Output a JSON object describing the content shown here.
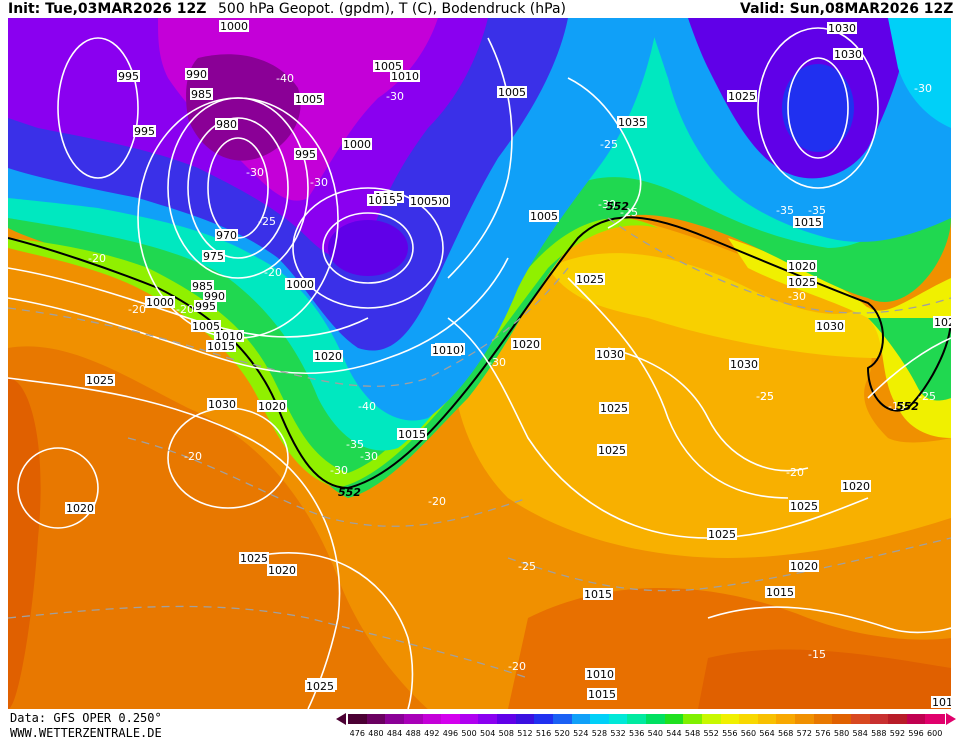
{
  "header": {
    "init": "Init: Tue,03MAR2026 12Z",
    "title": "500 hPa Geopot. (gpdm), T (C), Bodendruck (hPa)",
    "valid": "Valid: Sun,08MAR2026 12Z"
  },
  "footer": {
    "data_source": "Data: GFS OPER 0.250°",
    "website": "WWW.WETTERZENTRALE.DE"
  },
  "legend": {
    "values": [
      "476",
      "480",
      "484",
      "488",
      "492",
      "496",
      "500",
      "504",
      "508",
      "512",
      "516",
      "520",
      "524",
      "528",
      "532",
      "536",
      "540",
      "544",
      "548",
      "552",
      "556",
      "560",
      "564",
      "568",
      "572",
      "576",
      "580",
      "584",
      "588",
      "592",
      "596",
      "600"
    ],
    "colors": [
      "#4b0033",
      "#6a0060",
      "#8a0096",
      "#a800b8",
      "#c400d8",
      "#d400ee",
      "#b000f0",
      "#8a00f0",
      "#6000e8",
      "#3a10e0",
      "#2030f0",
      "#1a60f4",
      "#10a0f8",
      "#00d0f8",
      "#00e8d8",
      "#00eaa0",
      "#00e060",
      "#20e020",
      "#80f000",
      "#c8f800",
      "#f0f000",
      "#f8d800",
      "#f8c000",
      "#f8a800",
      "#f09000",
      "#e87800",
      "#e06000",
      "#d84820",
      "#c83030",
      "#b81c28",
      "#c00050",
      "#e0006c"
    ]
  },
  "map": {
    "isobar_labels": [
      "1000",
      "995",
      "990",
      "985",
      "980",
      "975",
      "970",
      "1005",
      "1010",
      "1015",
      "1020",
      "1025",
      "1030",
      "1035"
    ],
    "pressure_labels": [
      {
        "text": "1000"
      },
      {
        "text": "995"
      },
      {
        "text": "990"
      },
      {
        "text": "985"
      },
      {
        "text": "980"
      },
      {
        "text": "1005"
      },
      {
        "text": "1010"
      },
      {
        "text": "995"
      },
      {
        "text": "1000"
      },
      {
        "text": "1015"
      },
      {
        "text": "1005"
      },
      {
        "text": "1000"
      },
      {
        "text": "970"
      },
      {
        "text": "975"
      },
      {
        "text": "985"
      },
      {
        "text": "990"
      },
      {
        "text": "995"
      },
      {
        "text": "1000"
      },
      {
        "text": "1005"
      },
      {
        "text": "1010"
      },
      {
        "text": "1015"
      },
      {
        "text": "995"
      },
      {
        "text": "1000"
      },
      {
        "text": "1005"
      },
      {
        "text": "1010"
      },
      {
        "text": "1020"
      },
      {
        "text": "1025"
      },
      {
        "text": "1030"
      },
      {
        "text": "1020"
      },
      {
        "text": "1015"
      },
      {
        "text": "1005"
      },
      {
        "text": "1035"
      },
      {
        "text": "1025"
      },
      {
        "text": "1030"
      },
      {
        "text": "1025"
      },
      {
        "text": "1025"
      },
      {
        "text": "1020"
      },
      {
        "text": "1025"
      },
      {
        "text": "1025"
      },
      {
        "text": "1020"
      },
      {
        "text": "1015"
      },
      {
        "text": "1025"
      },
      {
        "text": "1015"
      },
      {
        "text": "1010"
      },
      {
        "text": "1025"
      },
      {
        "text": "1020"
      },
      {
        "text": "1015"
      },
      {
        "text": "1015"
      },
      {
        "text": "1030"
      },
      {
        "text": "1030"
      },
      {
        "text": "1020"
      },
      {
        "text": "1020"
      },
      {
        "text": "1025"
      },
      {
        "text": "1025"
      },
      {
        "text": "1015"
      },
      {
        "text": "1015"
      },
      {
        "text": "1020"
      },
      {
        "text": "1025"
      },
      {
        "text": "1020"
      },
      {
        "text": "1010"
      },
      {
        "text": "1005"
      },
      {
        "text": "1030"
      },
      {
        "text": "1030"
      }
    ],
    "temp_labels": [
      "-40",
      "-30",
      "-30",
      "-25",
      "-30",
      "-20",
      "-20",
      "-25",
      "-30",
      "-35",
      "-40",
      "-35",
      "-30",
      "-20",
      "-20",
      "-30",
      "-30",
      "-20",
      "-25",
      "-25",
      "-20",
      "-25",
      "-20",
      "-15",
      "-20",
      "-15",
      "-25",
      "-30",
      "-35",
      "-30",
      "-25"
    ],
    "geo_552_label": "552"
  }
}
